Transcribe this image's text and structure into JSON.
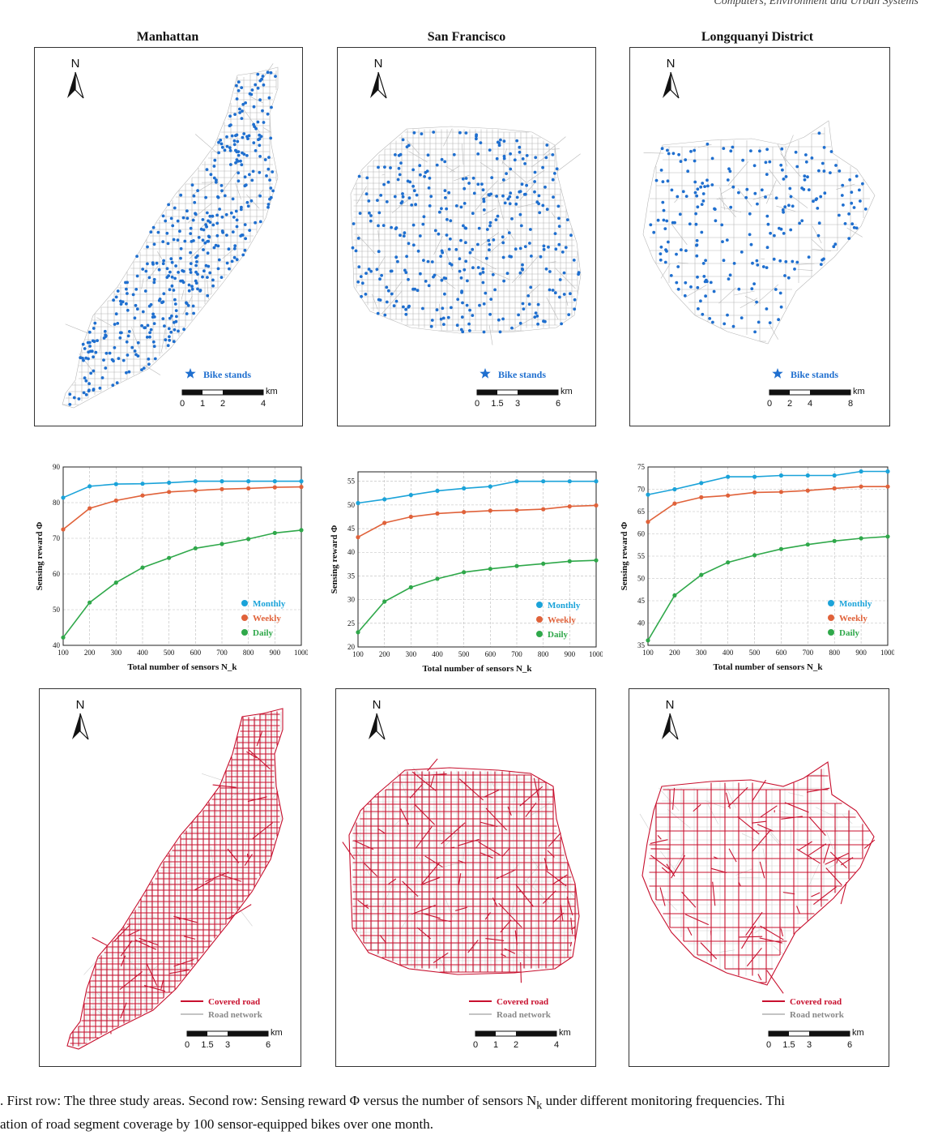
{
  "running_head": "Computers, Environment and Urban Systems",
  "columns": [
    {
      "title": "Manhattan",
      "scale_labels": [
        "0",
        "1",
        "2",
        "4"
      ],
      "scale_unit": "km",
      "bottom_scale_labels": [
        "0",
        "1.5",
        "3",
        "6"
      ]
    },
    {
      "title": "San Francisco",
      "scale_labels": [
        "0",
        "1.5",
        "3",
        "6"
      ],
      "scale_unit": "km",
      "bottom_scale_labels": [
        "0",
        "1",
        "2",
        "4"
      ]
    },
    {
      "title": "Longquanyi District",
      "scale_labels": [
        "0",
        "2",
        "4",
        "8"
      ],
      "scale_unit": "km",
      "bottom_scale_labels": [
        "0",
        "1.5",
        "3",
        "6"
      ]
    }
  ],
  "north_label": "N",
  "legend_top": "Bike stands",
  "legend_bottom": [
    "Covered road",
    "Road network"
  ],
  "colors": {
    "bike_stand": "#1f6fcf",
    "road": "#b8b8b8",
    "covered": "#c8102e",
    "monthly": "#1ba3d9",
    "weekly": "#e0623a",
    "daily": "#2fa84a"
  },
  "chart_data": [
    {
      "type": "line",
      "x": [
        100,
        200,
        300,
        400,
        500,
        600,
        700,
        800,
        900,
        1000
      ],
      "xlabel": "Total number of sensors N_k",
      "ylabel": "Sensing reward Φ",
      "ylim": [
        40,
        90
      ],
      "yticks": [
        40,
        50,
        60,
        70,
        80,
        90
      ],
      "grid": true,
      "legend": "bottom-right",
      "series": [
        {
          "name": "Monthly",
          "values": [
            81.4,
            84.6,
            85.2,
            85.3,
            85.6,
            86.0,
            86.0,
            86.0,
            86.0,
            86.0
          ]
        },
        {
          "name": "Weekly",
          "values": [
            72.5,
            78.4,
            80.6,
            82.0,
            83.0,
            83.4,
            83.8,
            84.0,
            84.3,
            84.4
          ]
        },
        {
          "name": "Daily",
          "values": [
            42.2,
            52.0,
            57.6,
            61.8,
            64.5,
            67.2,
            68.4,
            69.8,
            71.5,
            72.3
          ]
        }
      ]
    },
    {
      "type": "line",
      "x": [
        100,
        200,
        300,
        400,
        500,
        600,
        700,
        800,
        900,
        1000
      ],
      "xlabel": "Total number of sensors N_k",
      "ylabel": "Sensing reward Φ",
      "ylim": [
        20,
        57
      ],
      "yticks": [
        20,
        25,
        30,
        35,
        40,
        45,
        50,
        55
      ],
      "grid": true,
      "legend": "bottom-right",
      "series": [
        {
          "name": "Monthly",
          "values": [
            50.4,
            51.2,
            52.1,
            53.0,
            53.5,
            53.9,
            55.0,
            55.0,
            55.0,
            55.0
          ]
        },
        {
          "name": "Weekly",
          "values": [
            43.2,
            46.2,
            47.5,
            48.2,
            48.5,
            48.8,
            48.9,
            49.1,
            49.7,
            49.9
          ]
        },
        {
          "name": "Daily",
          "values": [
            23.1,
            29.6,
            32.6,
            34.4,
            35.8,
            36.5,
            37.1,
            37.6,
            38.1,
            38.3
          ]
        }
      ]
    },
    {
      "type": "line",
      "x": [
        100,
        200,
        300,
        400,
        500,
        600,
        700,
        800,
        900,
        1000
      ],
      "xlabel": "Total number of sensors N_k",
      "ylabel": "Sensing reward Φ",
      "ylim": [
        35,
        75
      ],
      "yticks": [
        35,
        40,
        45,
        50,
        55,
        60,
        65,
        70,
        75
      ],
      "grid": true,
      "legend": "bottom-right",
      "series": [
        {
          "name": "Monthly",
          "values": [
            68.8,
            70.0,
            71.4,
            72.8,
            72.8,
            73.1,
            73.1,
            73.1,
            74.0,
            74.0
          ]
        },
        {
          "name": "Weekly",
          "values": [
            62.7,
            66.8,
            68.2,
            68.6,
            69.3,
            69.4,
            69.7,
            70.2,
            70.6,
            70.6
          ]
        },
        {
          "name": "Daily",
          "values": [
            36.1,
            46.2,
            50.8,
            53.6,
            55.2,
            56.6,
            57.6,
            58.4,
            59.0,
            59.4
          ]
        }
      ]
    }
  ],
  "caption_lines": [
    ". First row: The three study areas. Second row: Sensing reward Φ versus the number of sensors N",
    "ation of road segment coverage by 100 sensor-equipped bikes over one month."
  ],
  "caption_sub": "k",
  "caption_tail": " under different monitoring frequencies. Thi"
}
